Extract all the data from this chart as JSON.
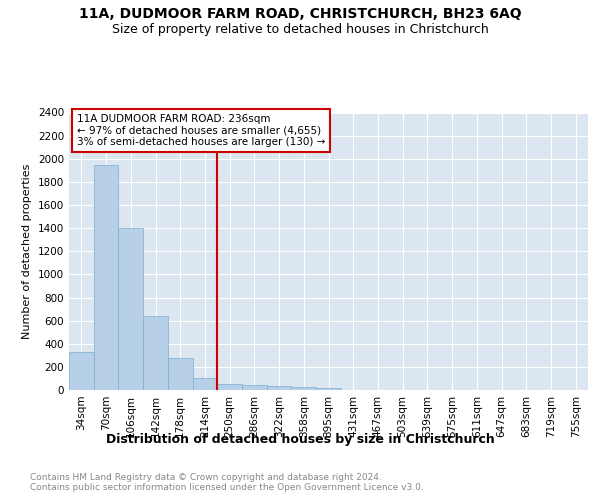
{
  "title1": "11A, DUDMOOR FARM ROAD, CHRISTCHURCH, BH23 6AQ",
  "title2": "Size of property relative to detached houses in Christchurch",
  "xlabel": "Distribution of detached houses by size in Christchurch",
  "ylabel": "Number of detached properties",
  "categories": [
    "34sqm",
    "70sqm",
    "106sqm",
    "142sqm",
    "178sqm",
    "214sqm",
    "250sqm",
    "286sqm",
    "322sqm",
    "358sqm",
    "395sqm",
    "431sqm",
    "467sqm",
    "503sqm",
    "539sqm",
    "575sqm",
    "611sqm",
    "647sqm",
    "683sqm",
    "719sqm",
    "755sqm"
  ],
  "values": [
    325,
    1950,
    1400,
    640,
    280,
    105,
    50,
    45,
    35,
    25,
    20,
    0,
    0,
    0,
    0,
    0,
    0,
    0,
    0,
    0,
    0
  ],
  "bar_color": "#b8cfe8",
  "bar_edge_color": "#7aadd4",
  "vline_x": 5.5,
  "vline_color": "#cc0000",
  "annotation_line1": "11A DUDMOOR FARM ROAD: 236sqm",
  "annotation_line2": "← 97% of detached houses are smaller (4,655)",
  "annotation_line3": "3% of semi-detached houses are larger (130) →",
  "annotation_box_color": "#ffffff",
  "annotation_box_edge_color": "#cc0000",
  "ylim": [
    0,
    2400
  ],
  "yticks": [
    0,
    200,
    400,
    600,
    800,
    1000,
    1200,
    1400,
    1600,
    1800,
    2000,
    2200,
    2400
  ],
  "background_color": "#dce6f0",
  "grid_color": "#ffffff",
  "footer": "Contains HM Land Registry data © Crown copyright and database right 2024.\nContains public sector information licensed under the Open Government Licence v3.0.",
  "title1_fontsize": 10,
  "title2_fontsize": 9,
  "xlabel_fontsize": 9,
  "ylabel_fontsize": 8,
  "tick_fontsize": 7.5,
  "footer_fontsize": 6.5,
  "annotation_fontsize": 7.5
}
